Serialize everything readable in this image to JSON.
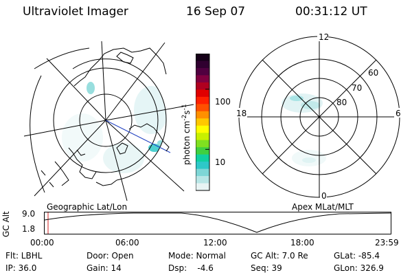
{
  "header": {
    "title": "Ultraviolet Imager",
    "date": "16 Sep 07",
    "time": "00:31:12 UT"
  },
  "colorbar": {
    "unit": "photon cm",
    "unit_exp1": "-2",
    "unit_mid": "s",
    "unit_exp2": "-1",
    "tick_high": "100",
    "tick_low": "10",
    "colors": [
      "#e8f4f4",
      "#b8e6e6",
      "#7ed6d6",
      "#2ec8c8",
      "#10d0a0",
      "#40d040",
      "#80e020",
      "#c8f000",
      "#ffff00",
      "#ffc800",
      "#ff9000",
      "#ff5000",
      "#ff2000",
      "#e00000",
      "#b00020",
      "#800040",
      "#500040",
      "#300030",
      "#150018"
    ]
  },
  "left_map": {
    "label": "Geographic Lat/Lon"
  },
  "right_map": {
    "label": "Apex MLat/MLT",
    "mlt_12": "12",
    "mlt_18": "18",
    "mlt_6": "6",
    "mlt_0": "0",
    "lat_60": "60",
    "lat_70": "70",
    "lat_80": "80"
  },
  "altitude_plot": {
    "ylabel": "GC Alt",
    "ytick_top": "9.0",
    "ytick_bottom": "1.8",
    "xticks": [
      "00:00",
      "06:00",
      "12:00",
      "18:00",
      "23:59"
    ]
  },
  "info": {
    "flt": "Flt: LBHL",
    "ip": "IP: 36.0",
    "door": "Door: Open",
    "gain": "Gain: 14",
    "mode": "Mode: Normal",
    "dsp": "Dsp:    -4.6",
    "gcalt": "GC Alt: 7.0 Re",
    "seq": "Seq: 39",
    "glat": "GLat: -85.4",
    "glon": "GLon: 326.9"
  }
}
